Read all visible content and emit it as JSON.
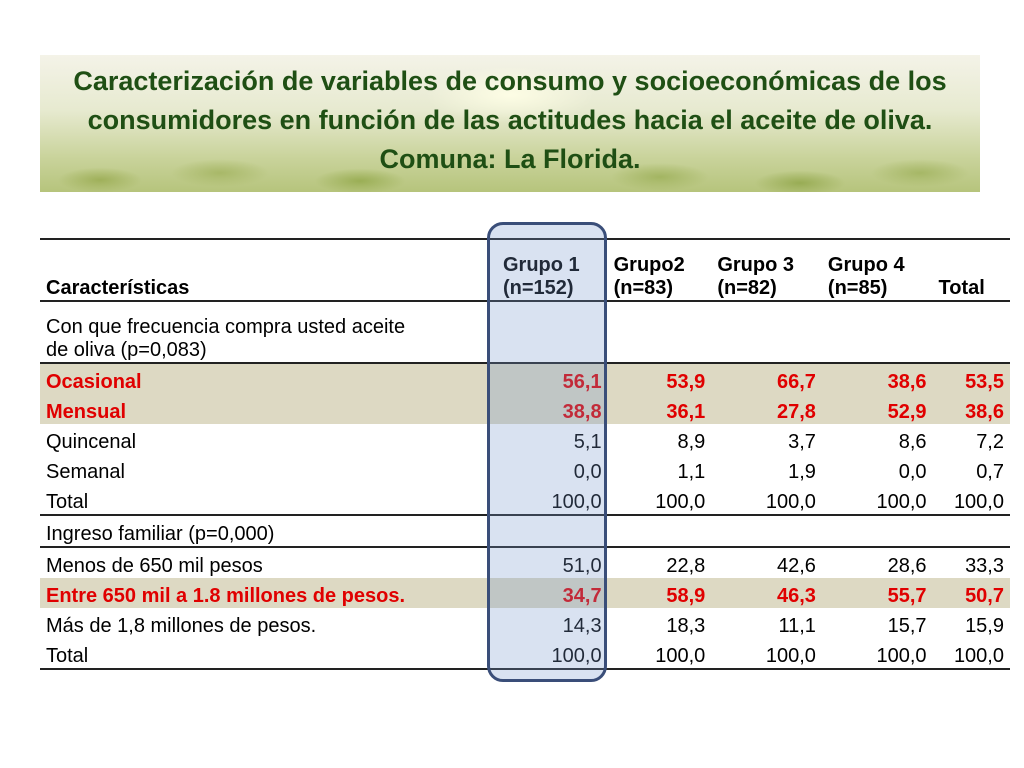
{
  "title": "Caracterización de variables de consumo y socioeconómicas de los consumidores en función de las actitudes hacia el aceite de oliva. Comuna: La Florida.",
  "table": {
    "headers": [
      {
        "line1": "",
        "line2": "Características"
      },
      {
        "line1": "Grupo 1",
        "line2": "(n=152)"
      },
      {
        "line1": "Grupo2",
        "line2": "(n=83)"
      },
      {
        "line1": "Grupo 3",
        "line2": "(n=82)"
      },
      {
        "line1": "Grupo 4",
        "line2": "(n=85)"
      },
      {
        "line1": "",
        "line2": "Total"
      }
    ],
    "sections": [
      {
        "heading_line1": "Con que frecuencia compra usted aceite",
        "heading_line2": "de oliva (p=0,083)",
        "rows": [
          {
            "label": "Ocasional",
            "values": [
              "56,1",
              "53,9",
              "66,7",
              "38,6",
              "53,5"
            ],
            "highlight": true
          },
          {
            "label": "Mensual",
            "values": [
              "38,8",
              "36,1",
              "27,8",
              "52,9",
              "38,6"
            ],
            "highlight": true
          },
          {
            "label": "Quincenal",
            "values": [
              "5,1",
              "8,9",
              "3,7",
              "8,6",
              "7,2"
            ],
            "highlight": false
          },
          {
            "label": "Semanal",
            "values": [
              "0,0",
              "1,1",
              "1,9",
              "0,0",
              "0,7"
            ],
            "highlight": false
          },
          {
            "label": "Total",
            "values": [
              "100,0",
              "100,0",
              "100,0",
              "100,0",
              "100,0"
            ],
            "highlight": false
          }
        ]
      },
      {
        "heading_line1": "Ingreso familiar (p=0,000)",
        "rows": [
          {
            "label": "Menos de 650 mil pesos",
            "values": [
              "51,0",
              "22,8",
              "42,6",
              "28,6",
              "33,3"
            ],
            "highlight": false
          },
          {
            "label": "Entre 650 mil a 1.8 millones de pesos.",
            "values": [
              "34,7",
              "58,9",
              "46,3",
              "55,7",
              "50,7"
            ],
            "highlight": true
          },
          {
            "label": "Más de 1,8 millones de pesos.",
            "values": [
              "14,3",
              "18,3",
              "11,1",
              "15,7",
              "15,9"
            ],
            "highlight": false
          },
          {
            "label": "Total",
            "values": [
              "100,0",
              "100,0",
              "100,0",
              "100,0",
              "100,0"
            ],
            "highlight": false
          }
        ]
      }
    ]
  },
  "colors": {
    "title": "#1f4f14",
    "highlight_text": "#e00000",
    "highlight_row_bg": "#ddd9c3",
    "group1_frame": "#3a4e79"
  }
}
